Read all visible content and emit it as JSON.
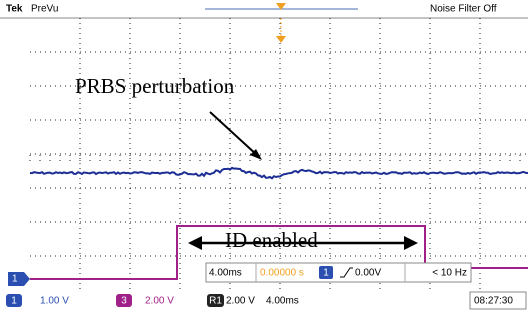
{
  "header": {
    "brand": "Tek",
    "mode": "PreVu",
    "noise_filter": "Noise Filter Off"
  },
  "annotations": {
    "perturbation": "PRBS perturbation",
    "enabled": "ID   enabled"
  },
  "markers": {
    "channel": "1"
  },
  "readout": {
    "timebase": "4.00ms",
    "position": "0.00000 s",
    "trigger_channel": "1",
    "trigger_level": "0.00V",
    "trigger_freq": "< 10 Hz"
  },
  "status": {
    "ch1_badge": "1",
    "ch1_scale": "1.00 V",
    "ch3_badge": "3",
    "ch3_scale": "2.00 V",
    "ref_badge": "R1",
    "ref_scale": "2.00 V",
    "ref_time": "4.00ms",
    "clock": "08:27:30"
  }
}
